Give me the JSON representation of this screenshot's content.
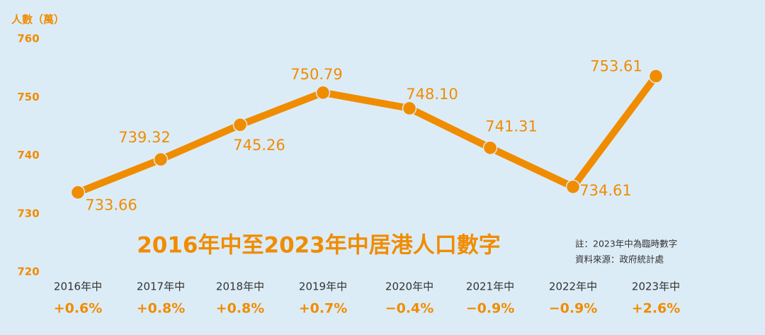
{
  "chart_data": {
    "type": "line",
    "title": "2016年中至2023年中居港人口數字",
    "y_label": "人數（萬）",
    "notes": [
      "註：2023年中為臨時數字",
      "資料來源：政府統計處"
    ],
    "categories": [
      "2016年中",
      "2017年中",
      "2018年中",
      "2019年中",
      "2020年中",
      "2021年中",
      "2022年中",
      "2023年中"
    ],
    "growth_labels": [
      "+0.6%",
      "+0.8%",
      "+0.8%",
      "+0.7%",
      "−0.4%",
      "−0.9%",
      "−0.9%",
      "+2.6%"
    ],
    "values": [
      733.66,
      739.32,
      745.26,
      750.79,
      748.1,
      741.31,
      734.61,
      753.61
    ],
    "value_labels": [
      "733.66",
      "739.32",
      "745.26",
      "750.79",
      "748.10",
      "741.31",
      "734.61",
      "753.61"
    ],
    "color": "#f08c00",
    "ylim": [
      720,
      760
    ],
    "yticks": [
      720,
      730,
      740,
      750,
      760
    ],
    "grid": false
  }
}
